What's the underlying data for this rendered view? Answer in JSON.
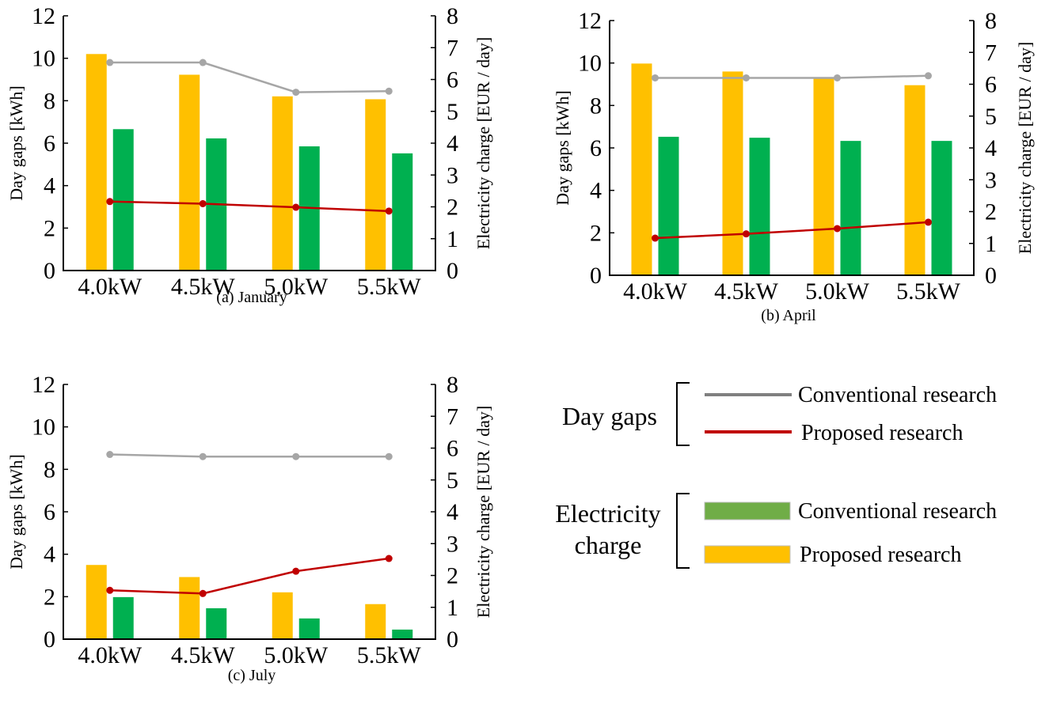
{
  "colors": {
    "proposed_bar": "#FFC000",
    "conventional_bar": "#00B050",
    "conventional_line": "#A6A6A6",
    "proposed_line": "#C00000",
    "legend_conventional_bar": "#70AD47",
    "legend_line_gray": "#808080"
  },
  "legend": {
    "group1_label": "Day gaps",
    "group1_items": [
      "Conventional research",
      "Proposed research"
    ],
    "group2_label_line1": "Electricity",
    "group2_label_line2": "charge",
    "group2_items": [
      "Conventional research",
      "Proposed research"
    ]
  },
  "chart_data": [
    {
      "type": "bar+line",
      "caption": "(a) January",
      "categories": [
        "4.0kW",
        "4.5kW",
        "5.0kW",
        "5.5kW"
      ],
      "ylabel": "Day gaps [kWh]",
      "y2label": "Electricity charge [EUR / day]",
      "ylim": [
        0,
        12
      ],
      "yticks": [
        0,
        2,
        4,
        6,
        8,
        10,
        12
      ],
      "y2lim": [
        0,
        8
      ],
      "y2ticks": [
        0,
        1,
        2,
        3,
        4,
        5,
        6,
        7,
        8
      ],
      "bars_right_axis": [
        {
          "name": "Proposed research",
          "values": [
            6.8,
            6.15,
            5.47,
            5.38
          ]
        },
        {
          "name": "Conventional research",
          "values": [
            4.44,
            4.15,
            3.9,
            3.68
          ]
        }
      ],
      "lines_left_axis": [
        {
          "name": "Conventional research",
          "values": [
            9.8,
            9.8,
            8.4,
            8.45
          ]
        },
        {
          "name": "Proposed research",
          "values": [
            3.25,
            3.15,
            2.98,
            2.8
          ]
        }
      ]
    },
    {
      "type": "bar+line",
      "caption": "(b) April",
      "categories": [
        "4.0kW",
        "4.5kW",
        "5.0kW",
        "5.5kW"
      ],
      "ylabel": "Day gaps [kWh]",
      "y2label": "Electricity charge [EUR / day]",
      "ylim": [
        0,
        12
      ],
      "yticks": [
        0,
        2,
        4,
        6,
        8,
        10,
        12
      ],
      "y2lim": [
        0,
        8
      ],
      "y2ticks": [
        0,
        1,
        2,
        3,
        4,
        5,
        6,
        7,
        8
      ],
      "bars_right_axis": [
        {
          "name": "Proposed research",
          "values": [
            6.65,
            6.4,
            6.2,
            5.97
          ]
        },
        {
          "name": "Conventional research",
          "values": [
            4.35,
            4.32,
            4.22,
            4.22
          ]
        }
      ],
      "lines_left_axis": [
        {
          "name": "Conventional research",
          "values": [
            9.3,
            9.3,
            9.3,
            9.4
          ]
        },
        {
          "name": "Proposed research",
          "values": [
            1.75,
            1.95,
            2.2,
            2.5
          ]
        }
      ]
    },
    {
      "type": "bar+line",
      "caption": "(c) July",
      "categories": [
        "4.0kW",
        "4.5kW",
        "5.0kW",
        "5.5kW"
      ],
      "ylabel": "Day gaps [kWh]",
      "y2label": "Electricity charge [EUR / day]",
      "ylim": [
        0,
        12
      ],
      "yticks": [
        0,
        2,
        4,
        6,
        8,
        10,
        12
      ],
      "y2lim": [
        0,
        8
      ],
      "y2ticks": [
        0,
        1,
        2,
        3,
        4,
        5,
        6,
        7,
        8
      ],
      "bars_right_axis": [
        {
          "name": "Proposed research",
          "values": [
            2.33,
            1.95,
            1.47,
            1.1
          ]
        },
        {
          "name": "Conventional research",
          "values": [
            1.32,
            0.97,
            0.65,
            0.3
          ]
        }
      ],
      "lines_left_axis": [
        {
          "name": "Conventional research",
          "values": [
            8.7,
            8.6,
            8.6,
            8.6
          ]
        },
        {
          "name": "Proposed research",
          "values": [
            2.3,
            2.15,
            3.2,
            3.8
          ]
        }
      ]
    }
  ]
}
